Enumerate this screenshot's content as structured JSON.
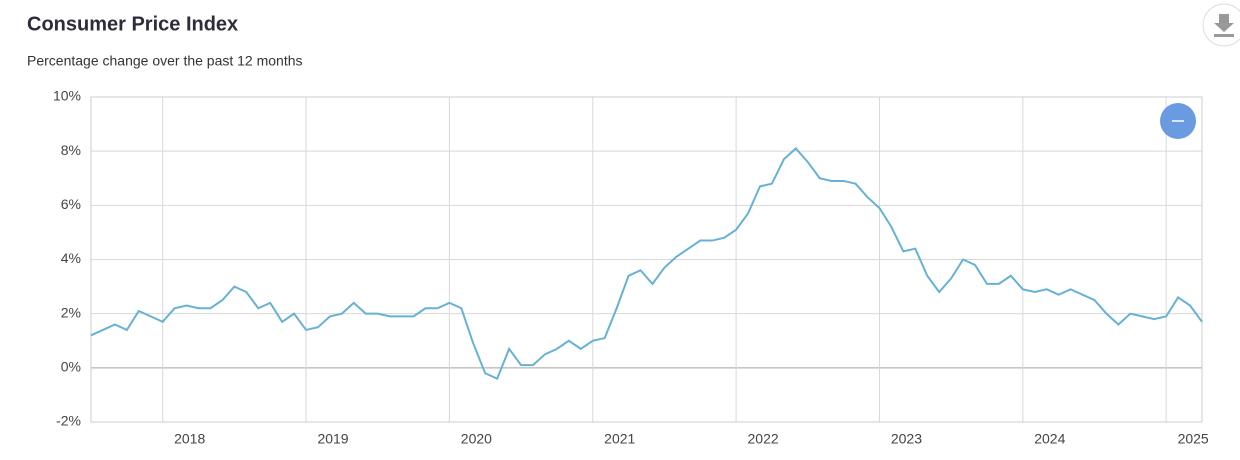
{
  "chart_data": {
    "type": "line",
    "title": "Consumer Price Index",
    "subtitle": "Percentage change over the past 12 months",
    "categories": [
      null,
      null,
      null,
      null,
      null,
      null,
      "2018",
      null,
      null,
      null,
      null,
      null,
      null,
      null,
      null,
      null,
      null,
      null,
      "2019",
      null,
      null,
      null,
      null,
      null,
      null,
      null,
      null,
      null,
      null,
      null,
      "2020",
      null,
      null,
      null,
      null,
      null,
      null,
      null,
      null,
      null,
      null,
      null,
      "2021",
      null,
      null,
      null,
      null,
      null,
      null,
      null,
      null,
      null,
      null,
      null,
      "2022",
      null,
      null,
      null,
      null,
      null,
      null,
      null,
      null,
      null,
      null,
      null,
      "2023",
      null,
      null,
      null,
      null,
      null,
      null,
      null,
      null,
      null,
      null,
      null,
      "2024",
      null,
      null,
      null,
      null,
      null,
      null,
      null,
      null,
      null,
      null,
      null,
      "2025",
      null,
      null,
      null
    ],
    "values": [
      1.2,
      1.4,
      1.6,
      1.4,
      2.1,
      1.9,
      1.7,
      2.2,
      2.3,
      2.2,
      2.2,
      2.5,
      3.0,
      2.8,
      2.2,
      2.4,
      1.7,
      2.0,
      1.4,
      1.5,
      1.9,
      2.0,
      2.4,
      2.0,
      2.0,
      1.9,
      1.9,
      1.9,
      2.2,
      2.2,
      2.4,
      2.2,
      0.9,
      -0.2,
      -0.4,
      0.7,
      0.1,
      0.1,
      0.5,
      0.7,
      1.0,
      0.7,
      1.0,
      1.1,
      2.2,
      3.4,
      3.6,
      3.1,
      3.7,
      4.1,
      4.4,
      4.7,
      4.7,
      4.8,
      5.1,
      5.7,
      6.7,
      6.8,
      7.7,
      8.1,
      7.6,
      7.0,
      6.9,
      6.9,
      6.8,
      6.3,
      5.9,
      5.2,
      4.3,
      4.4,
      3.4,
      2.8,
      3.3,
      4.0,
      3.8,
      3.1,
      3.1,
      3.4,
      2.9,
      2.8,
      2.9,
      2.7,
      2.9,
      2.7,
      2.5,
      2.0,
      1.6,
      2.0,
      1.9,
      1.8,
      1.9,
      2.6,
      2.3,
      1.7
    ],
    "color": "#67b2d4",
    "ylim": [
      -2,
      10
    ],
    "yticks": [
      {
        "value": -2,
        "label": "-2%"
      },
      {
        "value": 0,
        "label": "0%"
      },
      {
        "value": 2,
        "label": "2%"
      },
      {
        "value": 4,
        "label": "4%"
      },
      {
        "value": 6,
        "label": "6%"
      },
      {
        "value": 8,
        "label": "8%"
      },
      {
        "value": 10,
        "label": "10%"
      }
    ],
    "grid": true
  }
}
